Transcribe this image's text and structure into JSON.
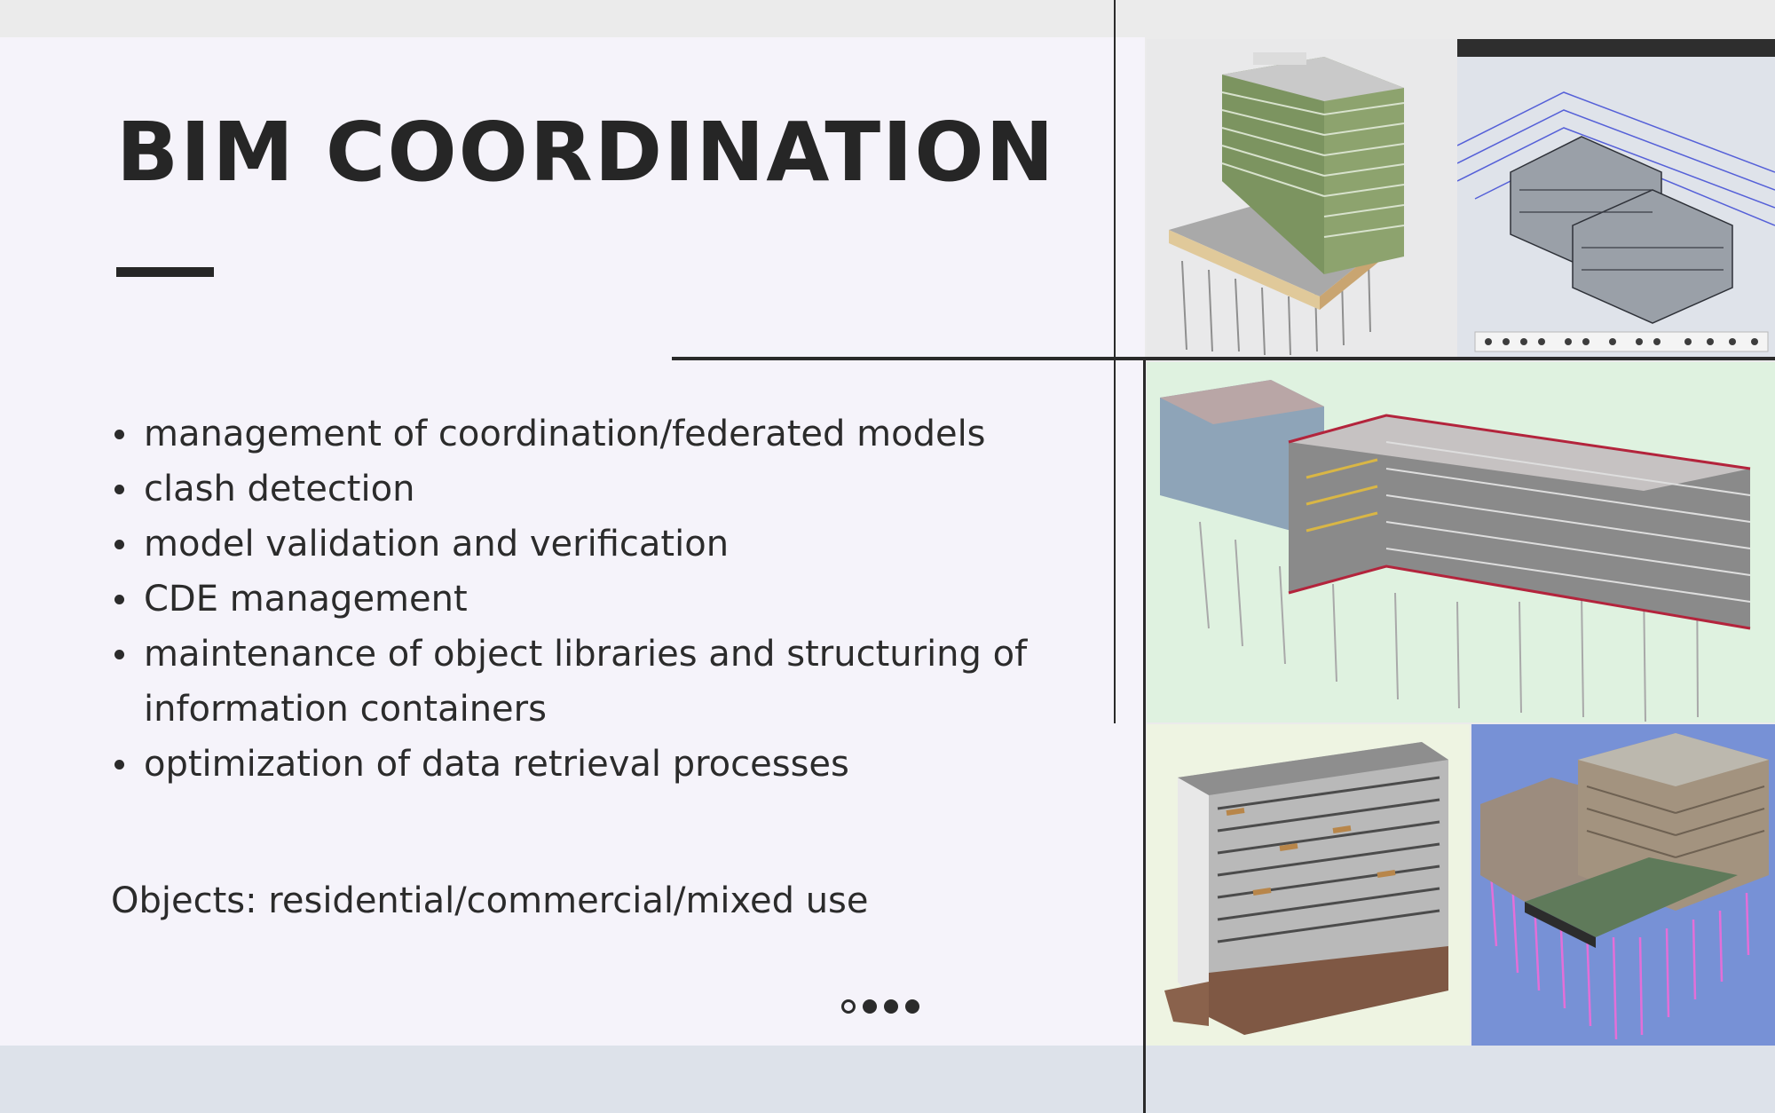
{
  "slide": {
    "title": "BIM COORDINATION",
    "bullets": [
      "management of coordination/federated models",
      "clash detection",
      "model validation and verification",
      "CDE management",
      "maintenance of object libraries and structuring of information containers",
      "optimization of data retrieval processes"
    ],
    "objects_line": "Objects: residential/commercial/mixed use",
    "pager": {
      "total": 4,
      "current": 1
    }
  },
  "images": [
    {
      "name": "green-facade-tower-model"
    },
    {
      "name": "federated-viewer-wireframe"
    },
    {
      "name": "mixed-use-complex-model"
    },
    {
      "name": "residential-highrise-model"
    },
    {
      "name": "courtyard-building-model"
    }
  ],
  "colors": {
    "text": "#262626",
    "panel": "#f5f3fa",
    "page": "#ebebeb",
    "strip": "#dde2ea"
  }
}
